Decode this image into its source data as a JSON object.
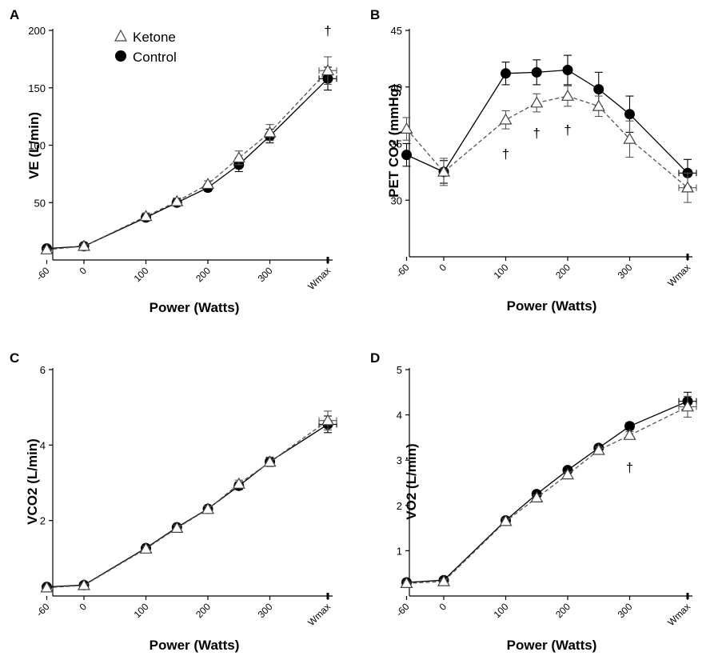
{
  "figure": {
    "legend": {
      "entries": [
        "Ketone",
        "Control"
      ]
    },
    "series_style": {
      "Ketone": {
        "marker": "open-triangle",
        "line": "dashed",
        "color": "#555555"
      },
      "Control": {
        "marker": "filled-circle",
        "line": "solid",
        "color": "#000000"
      }
    }
  },
  "chart_data": [
    {
      "panel": "A",
      "type": "line",
      "xlabel": "Power (Watts)",
      "ylabel": "VE (L/min)",
      "x_ticks": [
        "-60",
        "0",
        "100",
        "200",
        "300",
        "Wmax"
      ],
      "y_ticks": [
        "50",
        "100",
        "150",
        "200"
      ],
      "ylim": [
        0,
        200
      ],
      "x": [
        "-60",
        "0",
        "100",
        "150",
        "200",
        "250",
        "300",
        "Wmax"
      ],
      "series": [
        {
          "name": "Ketone",
          "values": [
            9,
            12,
            38,
            51,
            66,
            89,
            111,
            165
          ],
          "errors": [
            1,
            2,
            3,
            3,
            3,
            6,
            7,
            12
          ]
        },
        {
          "name": "Control",
          "values": [
            10,
            12,
            37,
            50,
            63,
            83,
            108,
            158
          ],
          "errors": [
            1,
            2,
            3,
            3,
            3,
            6,
            6,
            10
          ]
        }
      ],
      "annotations": [
        {
          "text": "†",
          "x": "Wmax"
        }
      ]
    },
    {
      "panel": "B",
      "type": "line",
      "xlabel": "Power (Watts)",
      "ylabel": "PET CO2 (mmHg)",
      "x_ticks": [
        "-60",
        "0",
        "100",
        "200",
        "300",
        "Wmax"
      ],
      "y_ticks": [
        "30",
        "35",
        "40",
        "45"
      ],
      "ylim": [
        25,
        45
      ],
      "x": [
        "-60",
        "0",
        "100",
        "150",
        "200",
        "250",
        "300",
        "Wmax"
      ],
      "series": [
        {
          "name": "Ketone",
          "values": [
            36.3,
            32.5,
            37.1,
            38.6,
            39.2,
            38.3,
            35.4,
            31.1
          ],
          "errors": [
            1.0,
            1.2,
            0.8,
            0.8,
            0.9,
            0.9,
            1.6,
            1.3
          ]
        },
        {
          "name": "Control",
          "values": [
            34.0,
            32.5,
            41.2,
            41.3,
            41.5,
            39.8,
            37.6,
            32.4
          ],
          "errors": [
            1.0,
            1.0,
            1.0,
            1.1,
            1.3,
            1.5,
            1.6,
            1.2
          ]
        }
      ],
      "annotations": [
        {
          "text": "†",
          "x": "100"
        },
        {
          "text": "†",
          "x": "150"
        },
        {
          "text": "†",
          "x": "200"
        }
      ]
    },
    {
      "panel": "C",
      "type": "line",
      "xlabel": "Power (Watts)",
      "ylabel": "VCO2 (L/min)",
      "x_ticks": [
        "-60",
        "0",
        "100",
        "200",
        "300",
        "Wmax"
      ],
      "y_ticks": [
        "2",
        "4",
        "6"
      ],
      "ylim": [
        0,
        6
      ],
      "x": [
        "-60",
        "0",
        "100",
        "150",
        "200",
        "250",
        "300",
        "Wmax"
      ],
      "series": [
        {
          "name": "Ketone",
          "values": [
            0.22,
            0.28,
            1.25,
            1.8,
            2.3,
            2.97,
            3.55,
            4.65
          ],
          "errors": [
            0.03,
            0.04,
            0.07,
            0.08,
            0.08,
            0.1,
            0.12,
            0.25
          ]
        },
        {
          "name": "Control",
          "values": [
            0.24,
            0.29,
            1.27,
            1.82,
            2.31,
            2.92,
            3.56,
            4.55
          ],
          "errors": [
            0.03,
            0.04,
            0.07,
            0.08,
            0.08,
            0.1,
            0.12,
            0.22
          ]
        }
      ],
      "annotations": []
    },
    {
      "panel": "D",
      "type": "line",
      "xlabel": "Power (Watts)",
      "ylabel": "VO2 (L/min)",
      "x_ticks": [
        "-60",
        "0",
        "100",
        "200",
        "300",
        "Wmax"
      ],
      "y_ticks": [
        "1",
        "2",
        "3",
        "4",
        "5"
      ],
      "ylim": [
        0,
        5
      ],
      "x": [
        "-60",
        "0",
        "100",
        "150",
        "200",
        "250",
        "300",
        "Wmax"
      ],
      "series": [
        {
          "name": "Ketone",
          "values": [
            0.28,
            0.32,
            1.65,
            2.17,
            2.68,
            3.22,
            3.55,
            4.18
          ],
          "errors": [
            0.03,
            0.04,
            0.05,
            0.06,
            0.06,
            0.07,
            0.08,
            0.23
          ]
        },
        {
          "name": "Control",
          "values": [
            0.3,
            0.35,
            1.67,
            2.25,
            2.78,
            3.27,
            3.75,
            4.3
          ],
          "errors": [
            0.03,
            0.04,
            0.05,
            0.06,
            0.06,
            0.07,
            0.08,
            0.2
          ]
        }
      ],
      "annotations": [
        {
          "text": "†",
          "x": "300"
        }
      ]
    }
  ]
}
